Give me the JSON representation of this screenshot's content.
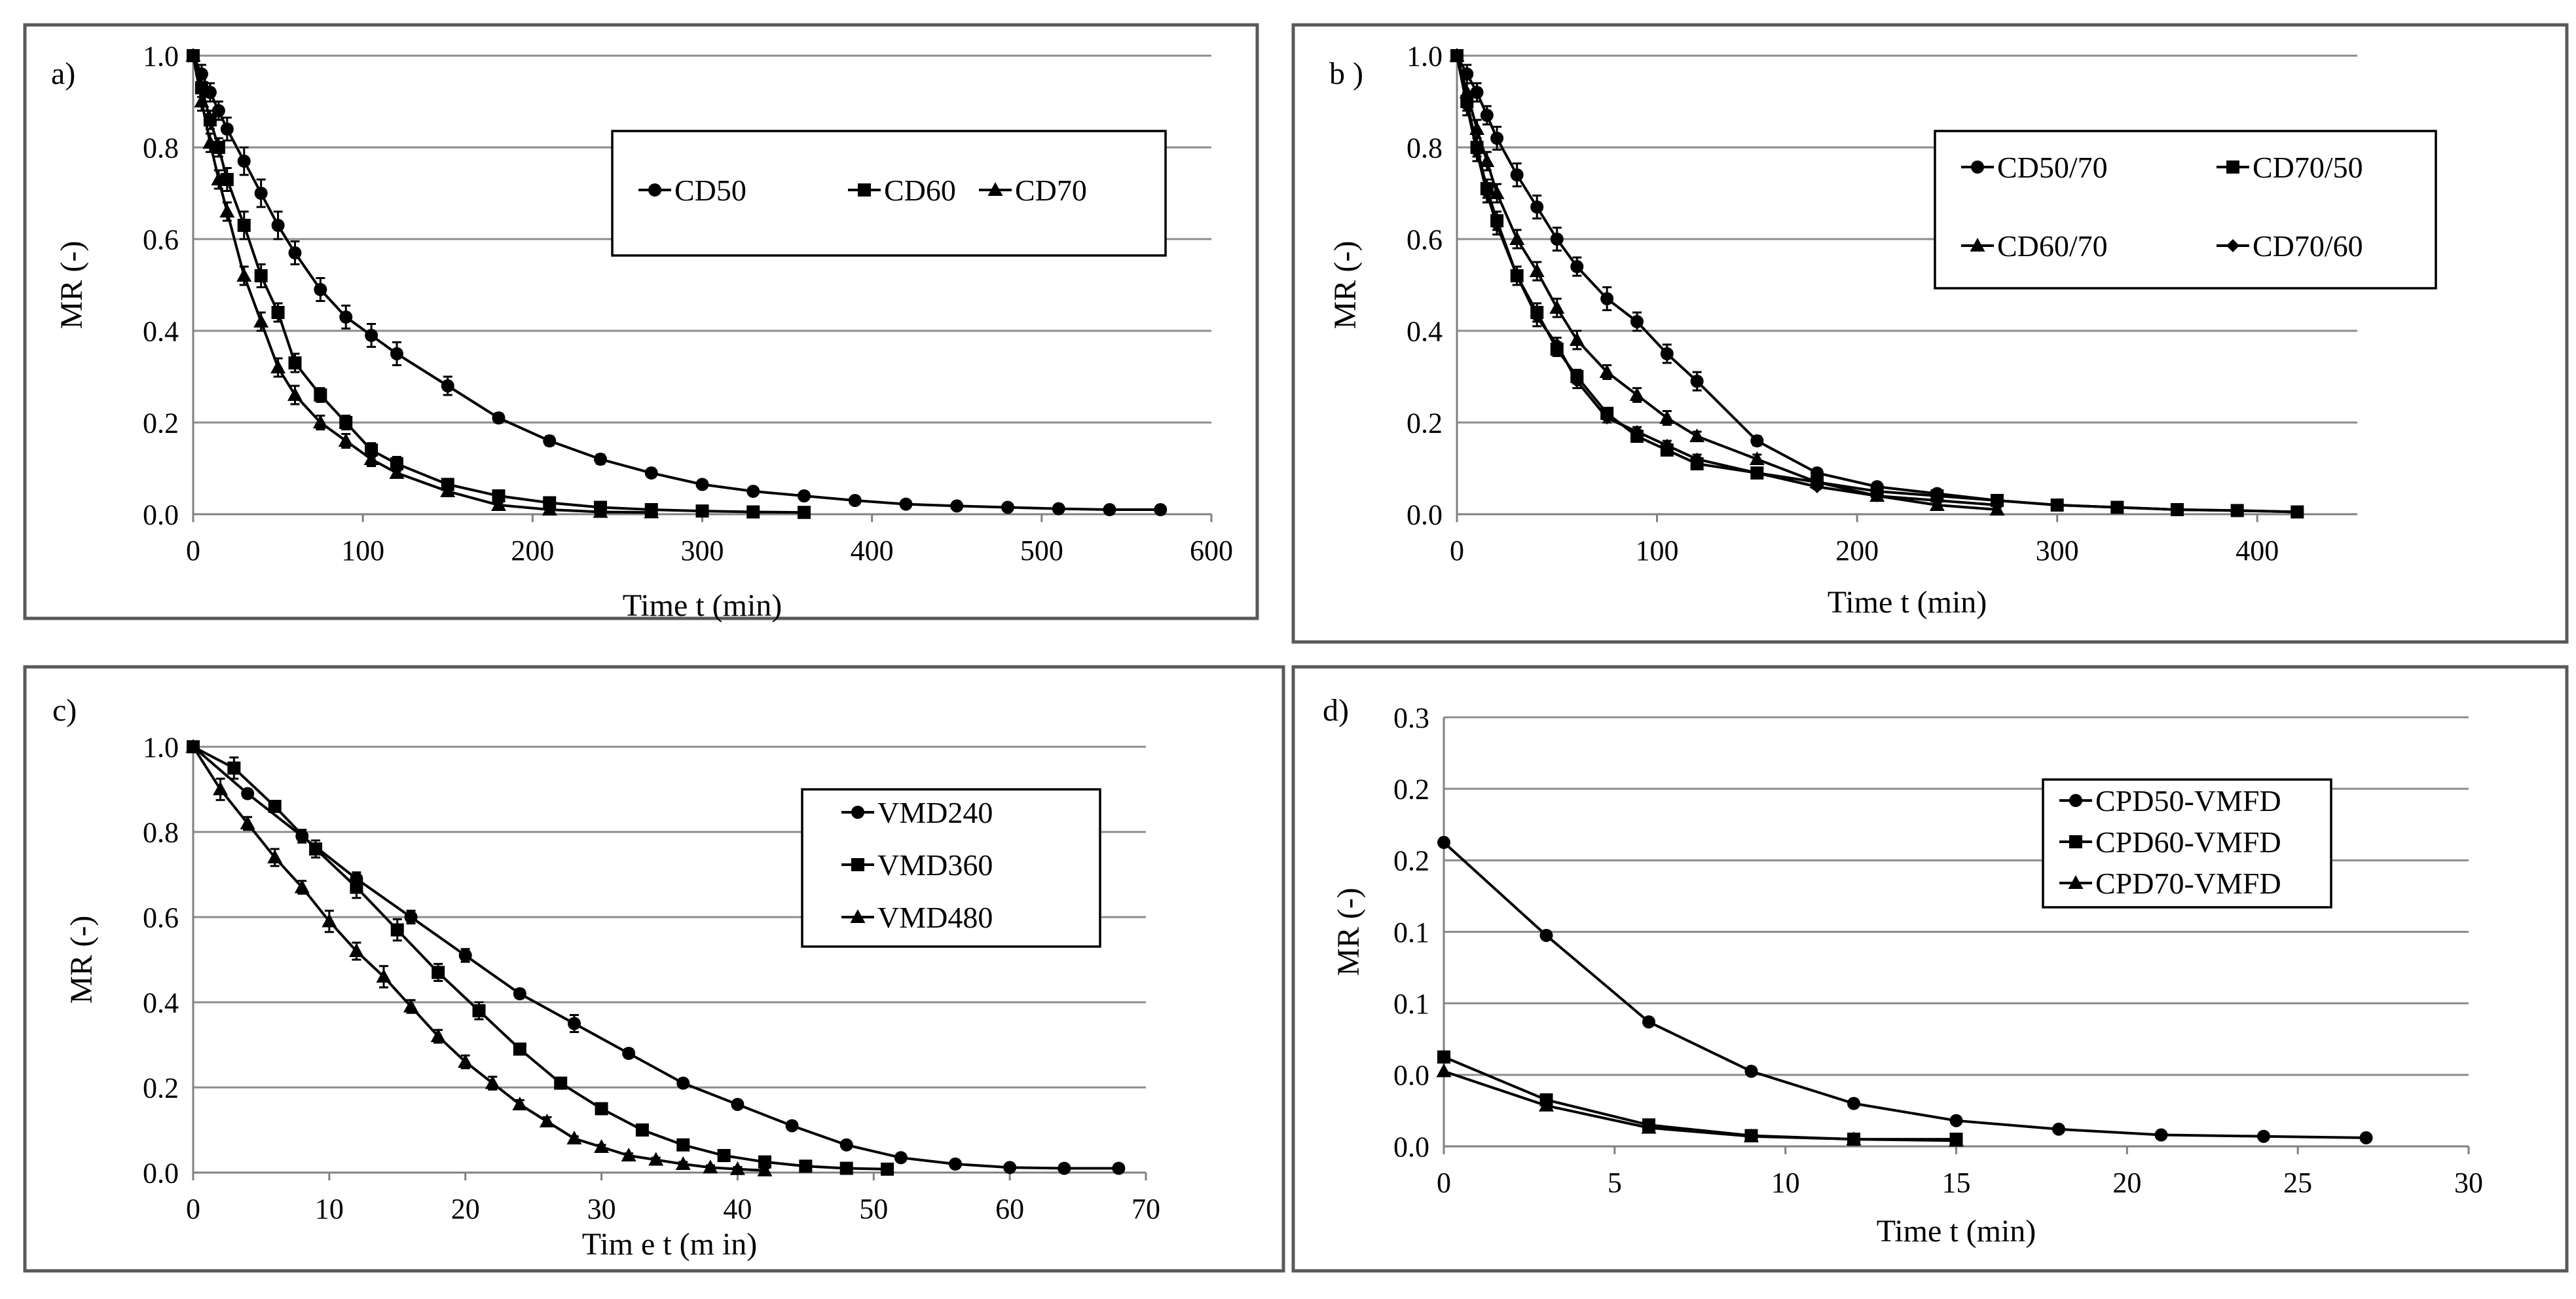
{
  "figure": {
    "background": "#ffffff",
    "frame_color": "#595959",
    "grid_color": "#8c8c8c",
    "ink_color": "#000000"
  },
  "chart_data": [
    {
      "id": "a",
      "type": "line",
      "panel_label": "a)",
      "xlabel": "Time t (min)",
      "ylabel": "MR (-)",
      "xlim": [
        0,
        600
      ],
      "ylim": [
        0,
        1.0
      ],
      "xticks": [
        0,
        100,
        200,
        300,
        400,
        500,
        600
      ],
      "xtick_labels": [
        "0",
        "100",
        "200",
        "300",
        "400",
        "500",
        "600"
      ],
      "yticks": [
        0,
        0.2,
        0.4,
        0.6,
        0.8,
        1.0
      ],
      "ytick_labels": [
        "0.0",
        "0.2",
        "0.4",
        "0.6",
        "0.8",
        "1.0"
      ],
      "legend": "top-right",
      "series": [
        {
          "name": "CD50",
          "marker": "circle",
          "x": [
            0,
            5,
            10,
            15,
            20,
            30,
            40,
            50,
            60,
            75,
            90,
            105,
            120,
            150,
            180,
            210,
            240,
            270,
            300,
            330,
            360,
            390,
            420,
            450,
            480,
            510,
            540,
            570
          ],
          "y": [
            1.0,
            0.96,
            0.92,
            0.88,
            0.84,
            0.77,
            0.7,
            0.63,
            0.57,
            0.49,
            0.43,
            0.39,
            0.35,
            0.28,
            0.21,
            0.16,
            0.12,
            0.09,
            0.065,
            0.05,
            0.04,
            0.03,
            0.022,
            0.018,
            0.015,
            0.012,
            0.01,
            0.01
          ],
          "error": [
            0,
            0.02,
            0.02,
            0.02,
            0.025,
            0.03,
            0.03,
            0.03,
            0.025,
            0.025,
            0.025,
            0.025,
            0.025,
            0.02,
            0.01,
            0.01,
            0.01,
            0.005,
            0.005,
            0.005,
            0.005,
            0.005,
            0.005,
            0.005,
            0.005,
            0.005,
            0.005,
            0.005
          ]
        },
        {
          "name": "CD60",
          "marker": "square",
          "x": [
            0,
            5,
            10,
            15,
            20,
            30,
            40,
            50,
            60,
            75,
            90,
            105,
            120,
            150,
            180,
            210,
            240,
            270,
            300,
            330,
            360
          ],
          "y": [
            1.0,
            0.93,
            0.86,
            0.8,
            0.73,
            0.63,
            0.52,
            0.44,
            0.33,
            0.26,
            0.2,
            0.14,
            0.11,
            0.065,
            0.04,
            0.025,
            0.015,
            0.01,
            0.007,
            0.005,
            0.004
          ],
          "error": [
            0,
            0.02,
            0.02,
            0.02,
            0.025,
            0.03,
            0.025,
            0.02,
            0.02,
            0.015,
            0.015,
            0.015,
            0.015,
            0.01,
            0.005,
            0.005,
            0.005,
            0.005,
            0.005,
            0.005,
            0.005
          ]
        },
        {
          "name": "CD70",
          "marker": "triangle",
          "x": [
            0,
            5,
            10,
            15,
            20,
            30,
            40,
            50,
            60,
            75,
            90,
            105,
            120,
            150,
            180,
            210,
            240,
            270
          ],
          "y": [
            1.0,
            0.9,
            0.81,
            0.73,
            0.66,
            0.52,
            0.42,
            0.32,
            0.26,
            0.2,
            0.16,
            0.12,
            0.09,
            0.05,
            0.02,
            0.01,
            0.005,
            0.004
          ],
          "error": [
            0,
            0.02,
            0.02,
            0.02,
            0.02,
            0.02,
            0.02,
            0.02,
            0.02,
            0.015,
            0.015,
            0.015,
            0.01,
            0.01,
            0.005,
            0.005,
            0.005,
            0.005
          ]
        }
      ]
    },
    {
      "id": "b",
      "type": "line",
      "panel_label": "b )",
      "xlabel": "Time  t (min)",
      "ylabel": "MR (-)",
      "xlim": [
        0,
        450
      ],
      "ylim": [
        0,
        1.0
      ],
      "xticks": [
        0,
        100,
        200,
        300,
        400
      ],
      "xtick_labels": [
        "0",
        "100",
        "200",
        "300",
        "400"
      ],
      "yticks": [
        0,
        0.2,
        0.4,
        0.6,
        0.8,
        1.0
      ],
      "ytick_labels": [
        "0.0",
        "0.2",
        "0.4",
        "0.6",
        "0.8",
        "1.0"
      ],
      "legend": "top-right",
      "series": [
        {
          "name": "CD50/70",
          "marker": "circle",
          "x": [
            0,
            5,
            10,
            15,
            20,
            30,
            40,
            50,
            60,
            75,
            90,
            105,
            120,
            150,
            180,
            210,
            240,
            270,
            300,
            330,
            360,
            390,
            420
          ],
          "y": [
            1.0,
            0.96,
            0.92,
            0.87,
            0.82,
            0.74,
            0.67,
            0.6,
            0.54,
            0.47,
            0.42,
            0.35,
            0.29,
            0.16,
            0.09,
            0.06,
            0.045,
            0.03,
            0.02,
            0.015,
            0.01,
            0.008,
            0.005
          ],
          "error": [
            0,
            0.02,
            0.02,
            0.02,
            0.025,
            0.025,
            0.025,
            0.025,
            0.02,
            0.025,
            0.02,
            0.02,
            0.02,
            0.01,
            0.005,
            0.005,
            0.005,
            0.005,
            0.005,
            0.005,
            0.005,
            0.005,
            0.005
          ]
        },
        {
          "name": "CD70/50",
          "marker": "square",
          "x": [
            0,
            5,
            10,
            15,
            20,
            30,
            40,
            50,
            60,
            75,
            90,
            105,
            120,
            150,
            180,
            210,
            240,
            270,
            300,
            330,
            360,
            390,
            420
          ],
          "y": [
            1.0,
            0.9,
            0.8,
            0.71,
            0.64,
            0.52,
            0.44,
            0.36,
            0.3,
            0.22,
            0.17,
            0.14,
            0.11,
            0.09,
            0.07,
            0.05,
            0.04,
            0.03,
            0.02,
            0.015,
            0.01,
            0.008,
            0.005
          ],
          "error": [
            0,
            0.02,
            0.02,
            0.02,
            0.02,
            0.02,
            0.02,
            0.015,
            0.015,
            0.01,
            0.01,
            0.01,
            0.01,
            0.01,
            0.005,
            0.005,
            0.005,
            0.005,
            0.005,
            0.005,
            0.005,
            0.005,
            0.005
          ]
        },
        {
          "name": "CD60/70",
          "marker": "triangle",
          "x": [
            0,
            5,
            10,
            15,
            20,
            30,
            40,
            50,
            60,
            75,
            90,
            105,
            120,
            150,
            180,
            210,
            240,
            270
          ],
          "y": [
            1.0,
            0.92,
            0.84,
            0.77,
            0.7,
            0.6,
            0.53,
            0.45,
            0.38,
            0.31,
            0.26,
            0.21,
            0.17,
            0.12,
            0.07,
            0.04,
            0.02,
            0.01
          ],
          "error": [
            0,
            0.02,
            0.02,
            0.02,
            0.02,
            0.02,
            0.02,
            0.02,
            0.02,
            0.015,
            0.015,
            0.015,
            0.01,
            0.01,
            0.005,
            0.005,
            0.005,
            0.005
          ]
        },
        {
          "name": "CD70/60",
          "marker": "diamond",
          "x": [
            0,
            5,
            10,
            15,
            20,
            30,
            40,
            50,
            60,
            75,
            90,
            105,
            120,
            150,
            180,
            210,
            240,
            270
          ],
          "y": [
            1.0,
            0.89,
            0.79,
            0.7,
            0.63,
            0.52,
            0.43,
            0.37,
            0.29,
            0.21,
            0.18,
            0.15,
            0.12,
            0.09,
            0.06,
            0.04,
            0.03,
            0.02
          ],
          "error": [
            0,
            0.02,
            0.02,
            0.02,
            0.02,
            0.02,
            0.02,
            0.015,
            0.015,
            0.01,
            0.01,
            0.01,
            0.01,
            0.01,
            0.005,
            0.005,
            0.005,
            0.005
          ]
        }
      ]
    },
    {
      "id": "c",
      "type": "line",
      "panel_label": "c)",
      "xlabel": "Tim e t (m in)",
      "ylabel": "MR (-)",
      "xlim": [
        0,
        70
      ],
      "ylim": [
        0,
        1.0
      ],
      "xticks": [
        0,
        10,
        20,
        30,
        40,
        50,
        60,
        70
      ],
      "xtick_labels": [
        "0",
        "10",
        "20",
        "30",
        "40",
        "50",
        "60",
        "70"
      ],
      "yticks": [
        0,
        0.2,
        0.4,
        0.6,
        0.8,
        1.0
      ],
      "ytick_labels": [
        "0.0",
        "0.2",
        "0.4",
        "0.6",
        "0.8",
        "1.0"
      ],
      "legend": "top-right",
      "series": [
        {
          "name": "VMD240",
          "marker": "circle",
          "x": [
            0,
            4,
            8,
            12,
            16,
            20,
            24,
            28,
            32,
            36,
            40,
            44,
            48,
            52,
            56,
            60,
            64,
            68
          ],
          "y": [
            1.0,
            0.89,
            0.79,
            0.69,
            0.6,
            0.51,
            0.42,
            0.35,
            0.28,
            0.21,
            0.16,
            0.11,
            0.065,
            0.035,
            0.02,
            0.012,
            0.01,
            0.01
          ],
          "error": [
            0,
            0.01,
            0.015,
            0.015,
            0.015,
            0.015,
            0.01,
            0.02,
            0.01,
            0.005,
            0.005,
            0.005,
            0.005,
            0.005,
            0.005,
            0.005,
            0.005,
            0.005
          ]
        },
        {
          "name": "VMD360",
          "marker": "square",
          "x": [
            0,
            3,
            6,
            9,
            12,
            15,
            18,
            21,
            24,
            27,
            30,
            33,
            36,
            39,
            42,
            45,
            48,
            51
          ],
          "y": [
            1.0,
            0.95,
            0.86,
            0.76,
            0.67,
            0.57,
            0.47,
            0.38,
            0.29,
            0.21,
            0.15,
            0.1,
            0.065,
            0.04,
            0.025,
            0.015,
            0.01,
            0.008
          ],
          "error": [
            0,
            0.025,
            0.01,
            0.02,
            0.025,
            0.025,
            0.02,
            0.02,
            0.01,
            0.01,
            0.01,
            0.005,
            0.005,
            0.005,
            0.005,
            0.005,
            0.005,
            0.005
          ]
        },
        {
          "name": "VMD480",
          "marker": "triangle",
          "x": [
            0,
            2,
            4,
            6,
            8,
            10,
            12,
            14,
            16,
            18,
            20,
            22,
            24,
            26,
            28,
            30,
            32,
            34,
            36,
            38,
            40,
            42
          ],
          "y": [
            1.0,
            0.9,
            0.82,
            0.74,
            0.67,
            0.59,
            0.52,
            0.46,
            0.39,
            0.32,
            0.26,
            0.21,
            0.16,
            0.12,
            0.08,
            0.06,
            0.04,
            0.03,
            0.02,
            0.012,
            0.008,
            0.005
          ],
          "error": [
            0,
            0.025,
            0.015,
            0.02,
            0.015,
            0.025,
            0.02,
            0.025,
            0.015,
            0.015,
            0.015,
            0.015,
            0.01,
            0.01,
            0.005,
            0.005,
            0.005,
            0.005,
            0.005,
            0.005,
            0.005,
            0.005
          ]
        }
      ]
    },
    {
      "id": "d",
      "type": "line",
      "panel_label": "d)",
      "xlabel": "Time t (min)",
      "ylabel": "MR (-)",
      "xlim": [
        0,
        30
      ],
      "ylim": [
        0,
        0.3
      ],
      "xticks": [
        0,
        5,
        10,
        15,
        20,
        25,
        30
      ],
      "xtick_labels": [
        "0",
        "5",
        "10",
        "15",
        "20",
        "25",
        "30"
      ],
      "yticks": [
        0,
        0.05,
        0.1,
        0.15,
        0.2,
        0.25,
        0.3
      ],
      "ytick_labels": [
        "0.0",
        "0.0",
        "0.1",
        "0.1",
        "0.2",
        "0.2",
        "0.3"
      ],
      "legend": "top-right",
      "series": [
        {
          "name": "CPD50-VMFD",
          "marker": "circle",
          "x": [
            0,
            3,
            6,
            9,
            12,
            15,
            18,
            21,
            24,
            27
          ],
          "y": [
            0.2125,
            0.1475,
            0.087,
            0.0525,
            0.03,
            0.018,
            0.012,
            0.008,
            0.007,
            0.006
          ]
        },
        {
          "name": "CPD60-VMFD",
          "marker": "square",
          "x": [
            0,
            3,
            6,
            9,
            12,
            15
          ],
          "y": [
            0.0625,
            0.0325,
            0.015,
            0.0075,
            0.005,
            0.005
          ]
        },
        {
          "name": "CPD70-VMFD",
          "marker": "triangle",
          "x": [
            0,
            3,
            6,
            9,
            12,
            15
          ],
          "y": [
            0.0525,
            0.0285,
            0.013,
            0.007,
            0.005,
            0.004
          ]
        }
      ]
    }
  ]
}
